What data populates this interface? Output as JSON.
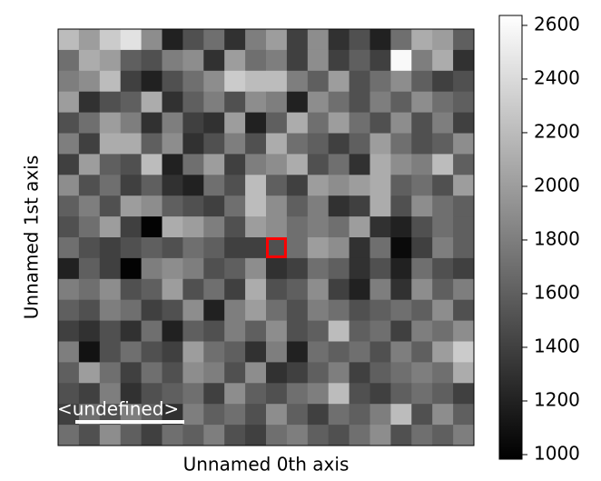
{
  "chart_data": {
    "type": "heatmap",
    "xlabel": "Unnamed 0th axis",
    "ylabel": "Unnamed 1st axis",
    "scale_bar_label": "<undefined>",
    "clim": [
      983,
      2637
    ],
    "colorbar_ticks": [
      1000,
      1200,
      1400,
      1600,
      1800,
      2000,
      2200,
      2400,
      2600
    ],
    "marker": {
      "row": 10,
      "col": 10,
      "color": "#ff0000"
    },
    "z": [
      [
        2200,
        2000,
        2300,
        2450,
        1900,
        1200,
        1500,
        1700,
        1300,
        1800,
        2000,
        1400,
        1900,
        1300,
        1500,
        1200,
        1700,
        2100,
        2000,
        1600
      ],
      [
        1700,
        2100,
        2000,
        1600,
        1500,
        1800,
        1900,
        1300,
        2000,
        1700,
        1800,
        1400,
        1900,
        1400,
        1600,
        1400,
        2600,
        1800,
        2100,
        1300
      ],
      [
        1800,
        1900,
        2200,
        1400,
        1200,
        1500,
        1700,
        1900,
        2300,
        2200,
        2200,
        1800,
        1600,
        2000,
        1500,
        1700,
        1900,
        1600,
        1400,
        1500
      ],
      [
        2000,
        1300,
        1500,
        1600,
        2100,
        1300,
        1600,
        1800,
        1500,
        1900,
        1800,
        1200,
        1900,
        1700,
        1500,
        1800,
        1600,
        1900,
        1700,
        1600
      ],
      [
        1500,
        1700,
        2000,
        1800,
        1300,
        1800,
        1400,
        1300,
        2000,
        1200,
        1600,
        2100,
        1700,
        2000,
        1700,
        1500,
        1900,
        1500,
        1800,
        1400
      ],
      [
        1800,
        1400,
        2100,
        2100,
        1600,
        1900,
        1300,
        1500,
        1800,
        1500,
        2100,
        1700,
        1600,
        1400,
        1600,
        2000,
        1700,
        1500,
        1600,
        1900
      ],
      [
        1400,
        2000,
        1600,
        1500,
        2200,
        1200,
        1700,
        2000,
        1400,
        1800,
        1900,
        2100,
        1500,
        1700,
        1300,
        2100,
        1900,
        1800,
        2200,
        1600
      ],
      [
        1900,
        1500,
        1700,
        1400,
        1600,
        1300,
        1200,
        1700,
        1500,
        2200,
        1600,
        1400,
        2000,
        1900,
        2000,
        2100,
        1600,
        1700,
        1500,
        2000
      ],
      [
        1600,
        1800,
        1500,
        2000,
        1900,
        1600,
        1500,
        1400,
        1700,
        2200,
        1900,
        1600,
        1800,
        1300,
        1400,
        2100,
        1500,
        1900,
        1700,
        1600
      ],
      [
        1500,
        1700,
        2000,
        1400,
        1000,
        2100,
        2000,
        1800,
        1500,
        2000,
        1900,
        1700,
        1800,
        1700,
        2000,
        1300,
        1200,
        1500,
        1700,
        1600
      ],
      [
        1700,
        1500,
        1400,
        1500,
        1600,
        1500,
        1700,
        1600,
        1400,
        1400,
        1500,
        1700,
        2000,
        1900,
        1300,
        1700,
        1050,
        1400,
        1800,
        1600
      ],
      [
        1200,
        1600,
        1400,
        1000,
        1800,
        1900,
        1800,
        1500,
        1600,
        1900,
        1300,
        1400,
        1700,
        1600,
        1300,
        1500,
        1200,
        1700,
        1500,
        1400
      ],
      [
        1800,
        1700,
        1900,
        1500,
        1600,
        2000,
        1500,
        1700,
        1400,
        2100,
        1500,
        1600,
        1900,
        1400,
        1200,
        1800,
        1300,
        1900,
        1600,
        1800
      ],
      [
        1600,
        1500,
        1800,
        1700,
        1400,
        1500,
        1900,
        1200,
        1800,
        2000,
        1700,
        1500,
        1800,
        1700,
        1500,
        1600,
        1700,
        1600,
        1900,
        1500
      ],
      [
        1400,
        1300,
        1500,
        1300,
        1700,
        1200,
        1600,
        1500,
        1800,
        1600,
        1900,
        1500,
        1600,
        2200,
        1600,
        1700,
        1400,
        1800,
        1700,
        1900
      ],
      [
        1800,
        1100,
        1500,
        1700,
        1500,
        1400,
        2000,
        1700,
        1600,
        1300,
        1800,
        1200,
        1700,
        1600,
        1700,
        1500,
        1800,
        1600,
        2000,
        2300
      ],
      [
        1600,
        2000,
        1700,
        1400,
        1700,
        1500,
        1900,
        1800,
        1500,
        1900,
        1300,
        1400,
        1600,
        1800,
        1400,
        1600,
        1700,
        1800,
        1700,
        2100
      ],
      [
        1500,
        1400,
        1800,
        1300,
        1500,
        1600,
        1700,
        1400,
        1900,
        1600,
        1500,
        1700,
        1800,
        2200,
        1500,
        1400,
        1600,
        1700,
        1600,
        1400
      ],
      [
        1400,
        1700,
        1500,
        1800,
        1600,
        1300,
        1800,
        1600,
        1700,
        1500,
        1900,
        1600,
        1400,
        1700,
        1600,
        1800,
        2200,
        1500,
        1900,
        1600
      ],
      [
        1700,
        1500,
        1900,
        1600,
        1400,
        1700,
        1600,
        1800,
        1500,
        1400,
        1700,
        1800,
        1600,
        1500,
        1700,
        1900,
        1500,
        1700,
        1600,
        1800
      ]
    ]
  }
}
